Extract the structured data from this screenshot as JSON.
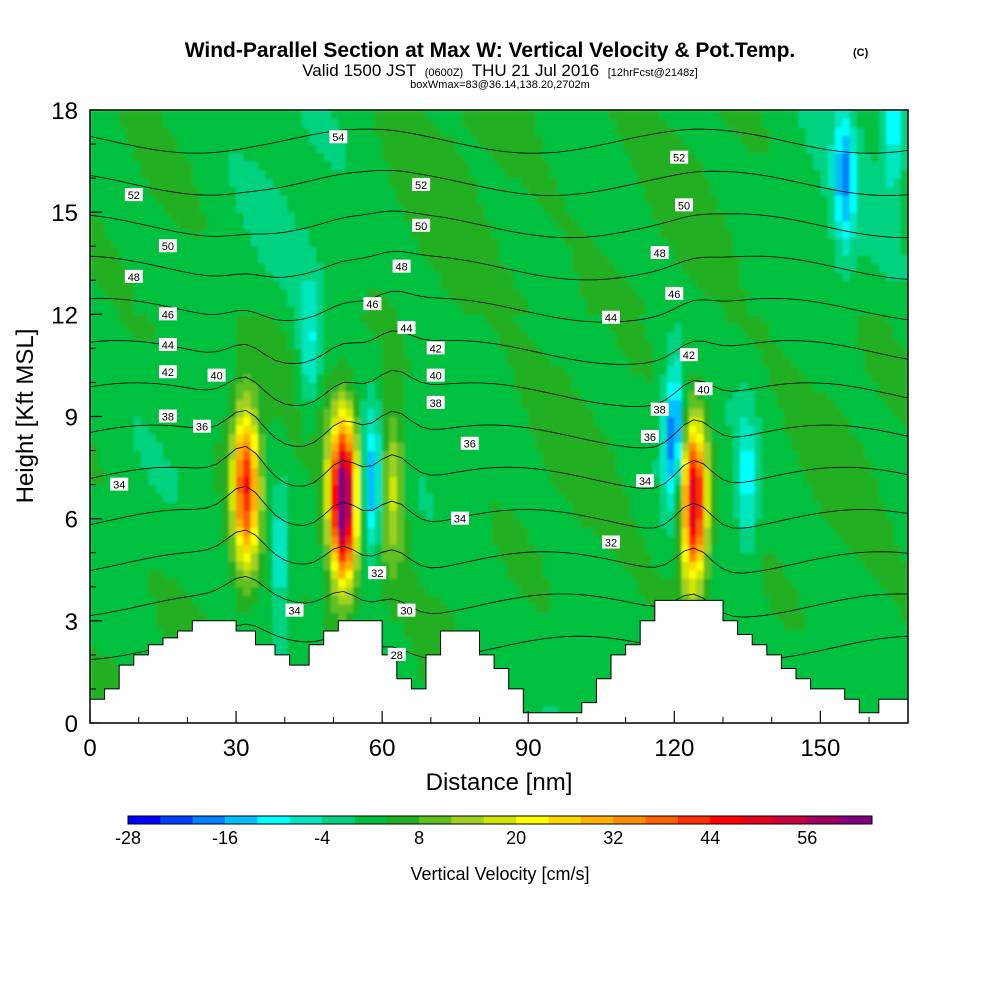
{
  "title": {
    "main": "Wind-Parallel Section at Max W: Vertical Velocity & Pot.Temp.",
    "main_tag": "(C)",
    "valid_prefix": "Valid 1500 JST",
    "valid_utc": "(0600Z)",
    "valid_date": "THU 21 Jul 2016",
    "forecast": "[12hrFcst@2148z]",
    "box_info": "boxWmax=83@36.14,138.20,2702m"
  },
  "chart_data": {
    "type": "heatmap",
    "xlabel": "Distance [nm]",
    "ylabel": "Height [Kft MSL]",
    "xlim": [
      0,
      168
    ],
    "ylim": [
      0,
      18
    ],
    "x_ticks": [
      "0",
      "30",
      "60",
      "90",
      "120",
      "150"
    ],
    "x_tick_values": [
      0,
      30,
      60,
      90,
      120,
      150
    ],
    "y_ticks": [
      "0",
      "3",
      "6",
      "9",
      "12",
      "15",
      "18"
    ],
    "y_tick_values": [
      0,
      3,
      6,
      9,
      12,
      15,
      18
    ],
    "colorbar": {
      "title": "Vertical Velocity [cm/s]",
      "min": -28,
      "max": 64,
      "step": 4,
      "labels": [
        "-28",
        "-16",
        "-4",
        "8",
        "20",
        "32",
        "44",
        "56"
      ],
      "label_values": [
        -28,
        -16,
        -4,
        8,
        20,
        32,
        44,
        56
      ],
      "colors": [
        "#0000ff",
        "#0040ff",
        "#0080ff",
        "#00bfff",
        "#00ffff",
        "#00e6bf",
        "#00d380",
        "#00c040",
        "#20b020",
        "#60c020",
        "#a0d020",
        "#d0e600",
        "#ffff00",
        "#ffd800",
        "#ffb000",
        "#ff8c00",
        "#ff6000",
        "#ff3000",
        "#ff0000",
        "#e60020",
        "#c80040",
        "#a00060",
        "#800080"
      ]
    },
    "updrafts": [
      {
        "x": 32,
        "z": 7.0,
        "w": 40
      },
      {
        "x": 52,
        "z": 6.5,
        "w": 64
      },
      {
        "x": 62,
        "z": 7.0,
        "w": 16
      },
      {
        "x": 124,
        "z": 6.5,
        "w": 52
      }
    ],
    "downdrafts": [
      {
        "x": 39,
        "z": 5.0,
        "w": -12
      },
      {
        "x": 45,
        "z": 11.0,
        "w": -12
      },
      {
        "x": 58,
        "z": 7.0,
        "w": -20
      },
      {
        "x": 120,
        "z": 8.5,
        "w": -24
      },
      {
        "x": 135,
        "z": 7.0,
        "w": -12
      },
      {
        "x": 155,
        "z": 16.0,
        "w": -16
      },
      {
        "x": 165,
        "z": 17.5,
        "w": -12
      }
    ],
    "terrain": {
      "x": [
        0,
        3,
        3,
        6,
        6,
        9,
        9,
        12,
        12,
        15,
        15,
        18,
        18,
        21,
        21,
        30,
        30,
        34,
        34,
        38,
        38,
        41,
        41,
        45,
        45,
        48,
        48,
        51,
        51,
        60,
        60,
        63,
        63,
        66,
        66,
        69,
        69,
        72,
        72,
        80,
        80,
        83,
        83,
        86,
        86,
        89,
        89,
        91,
        91,
        101,
        101,
        104,
        104,
        107,
        107,
        110,
        110,
        113,
        113,
        116,
        116,
        119,
        119,
        130,
        130,
        133,
        133,
        136,
        136,
        139,
        139,
        142,
        142,
        145,
        145,
        148,
        148,
        151,
        151,
        155,
        155,
        158,
        158,
        162,
        162,
        168
      ],
      "z": [
        0.7,
        0.7,
        1.0,
        1.0,
        1.7,
        1.7,
        2.0,
        2.0,
        2.3,
        2.3,
        2.5,
        2.5,
        2.7,
        2.7,
        3.0,
        3.0,
        2.7,
        2.7,
        2.3,
        2.3,
        2.0,
        2.0,
        1.7,
        1.7,
        2.3,
        2.3,
        2.7,
        2.7,
        3.0,
        3.0,
        2.0,
        2.0,
        1.3,
        1.3,
        1.0,
        1.0,
        2.0,
        2.0,
        2.7,
        2.7,
        2.0,
        2.0,
        1.6,
        1.6,
        1.0,
        1.0,
        0.3,
        0.3,
        0.3,
        0.3,
        0.6,
        0.6,
        1.3,
        1.3,
        2.0,
        2.0,
        2.3,
        2.3,
        3.0,
        3.0,
        3.6,
        3.6,
        3.6,
        3.6,
        3.0,
        3.0,
        2.6,
        2.6,
        2.3,
        2.3,
        2.0,
        2.0,
        1.6,
        1.6,
        1.3,
        1.3,
        1.0,
        1.0,
        1.0,
        1.0,
        0.7,
        0.7,
        0.3,
        0.3,
        0.7,
        0.7
      ]
    },
    "theta_contours": {
      "levels": [
        30,
        32,
        34,
        36,
        38,
        40,
        42,
        44,
        46,
        48,
        50,
        52,
        54
      ],
      "labels": [
        {
          "text": "52",
          "x": 9,
          "z": 15.5
        },
        {
          "text": "50",
          "x": 16,
          "z": 14.0
        },
        {
          "text": "48",
          "x": 9,
          "z": 13.1
        },
        {
          "text": "46",
          "x": 16,
          "z": 12.0
        },
        {
          "text": "44",
          "x": 16,
          "z": 11.1
        },
        {
          "text": "42",
          "x": 16,
          "z": 10.3
        },
        {
          "text": "40",
          "x": 26,
          "z": 10.2
        },
        {
          "text": "38",
          "x": 16,
          "z": 9.0
        },
        {
          "text": "36",
          "x": 23,
          "z": 8.7
        },
        {
          "text": "34",
          "x": 6,
          "z": 7.0
        },
        {
          "text": "54",
          "x": 51,
          "z": 17.2
        },
        {
          "text": "52",
          "x": 68,
          "z": 15.8
        },
        {
          "text": "50",
          "x": 68,
          "z": 14.6
        },
        {
          "text": "48",
          "x": 64,
          "z": 13.4
        },
        {
          "text": "46",
          "x": 58,
          "z": 12.3
        },
        {
          "text": "44",
          "x": 65,
          "z": 11.6
        },
        {
          "text": "42",
          "x": 71,
          "z": 11.0
        },
        {
          "text": "40",
          "x": 71,
          "z": 10.2
        },
        {
          "text": "38",
          "x": 71,
          "z": 9.4
        },
        {
          "text": "36",
          "x": 78,
          "z": 8.2
        },
        {
          "text": "34",
          "x": 76,
          "z": 6.0
        },
        {
          "text": "32",
          "x": 59,
          "z": 4.4
        },
        {
          "text": "30",
          "x": 65,
          "z": 3.3
        },
        {
          "text": "34",
          "x": 42,
          "z": 3.3
        },
        {
          "text": "28",
          "x": 63,
          "z": 2.0
        },
        {
          "text": "52",
          "x": 121,
          "z": 16.6
        },
        {
          "text": "50",
          "x": 122,
          "z": 15.2
        },
        {
          "text": "48",
          "x": 117,
          "z": 13.8
        },
        {
          "text": "46",
          "x": 120,
          "z": 12.6
        },
        {
          "text": "44",
          "x": 107,
          "z": 11.9
        },
        {
          "text": "42",
          "x": 123,
          "z": 10.8
        },
        {
          "text": "40",
          "x": 126,
          "z": 9.8
        },
        {
          "text": "38",
          "x": 117,
          "z": 9.2
        },
        {
          "text": "36",
          "x": 115,
          "z": 8.4
        },
        {
          "text": "34",
          "x": 114,
          "z": 7.1
        },
        {
          "text": "32",
          "x": 107,
          "z": 5.3
        }
      ]
    }
  }
}
